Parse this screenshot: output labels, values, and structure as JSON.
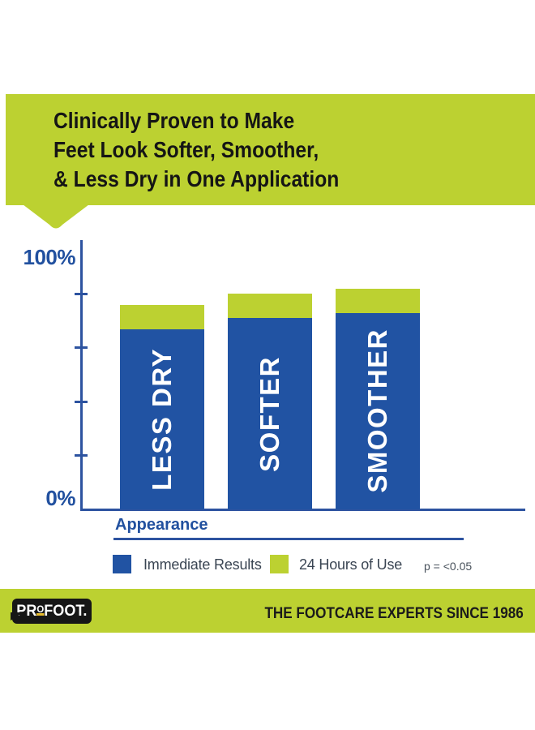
{
  "colors": {
    "brand_green": "#bcd131",
    "brand_blue": "#2153a3",
    "axis_blue": "#2d53a0",
    "text_blue": "#21509f",
    "legend_text": "#3a4553",
    "title_text": "#151515",
    "footer_text": "#1b1b1b",
    "logo_underline_yellow": "#e8bc2e"
  },
  "header": {
    "title_line1": "Clinically Proven to Make",
    "title_line2": "Feet Look Softer, Smoother,",
    "title_line3": "& Less Dry in One Application"
  },
  "chart_data": {
    "type": "bar",
    "stacked": true,
    "title": "",
    "xlabel": "Appearance",
    "ylabel": "",
    "ylim": [
      0,
      100
    ],
    "ytick_interval": 20,
    "ytick_labels_shown": [
      "0%",
      "100%"
    ],
    "categories": [
      "LESS DRY",
      "SOFTER",
      "SMOOTHER"
    ],
    "series": [
      {
        "name": "Immediate Results",
        "color": "#2153a3",
        "values": [
          67,
          71,
          73
        ]
      },
      {
        "name": "24 Hours of Use",
        "color": "#bcd131",
        "values": [
          76,
          80,
          82
        ],
        "note": "values are cumulative bar-top heights (immediate + 24h gain)"
      }
    ],
    "legend_position": "bottom",
    "grid": false,
    "annotation": "p = <0.05"
  },
  "axis_labels": {
    "y_max": "100%",
    "y_min": "0%"
  },
  "legend": {
    "immediate_label": "Immediate Results",
    "hours24_label": "24 Hours of Use",
    "p_value": "p = <0.05"
  },
  "footer": {
    "logo_pre": "PR",
    "logo_small_o": "O",
    "logo_rest": "FOOT",
    "logo_period": ".",
    "tagline": "THE FOOTCARE EXPERTS SINCE 1986"
  }
}
